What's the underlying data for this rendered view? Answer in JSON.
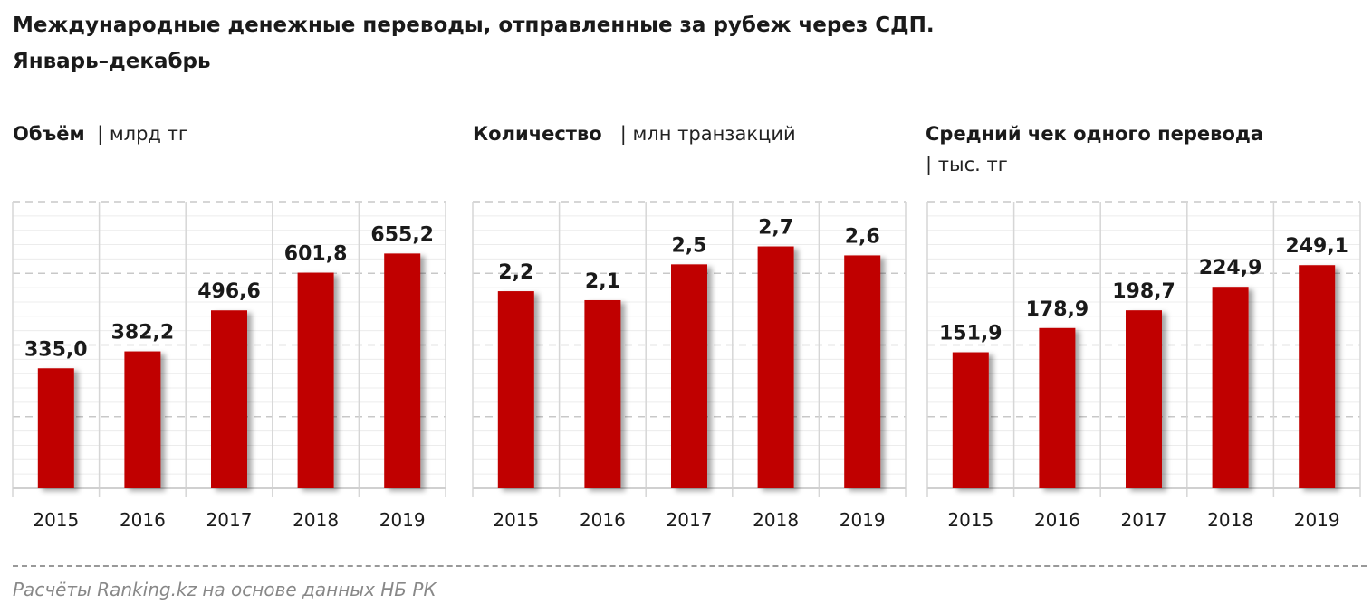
{
  "title_line1": "Международные денежные переводы, отправленные за рубеж через СДП.",
  "title_line2": "Январь–декабрь",
  "bar_color": "#c00000",
  "source": "Расчёты Ranking.kz на основе данных НБ РК",
  "chart_data": [
    {
      "type": "bar",
      "title": "Объём",
      "unit": "| млрд тг",
      "categories": [
        "2015",
        "2016",
        "2017",
        "2018",
        "2019"
      ],
      "values": [
        335.0,
        382.2,
        496.6,
        601.8,
        655.2
      ],
      "labels": [
        "335,0",
        "382,2",
        "496,6",
        "601,8",
        "655,2"
      ],
      "ylim": [
        0,
        800
      ],
      "grid": true
    },
    {
      "type": "bar",
      "title": "Количество",
      "unit": "| млн транзакций",
      "categories": [
        "2015",
        "2016",
        "2017",
        "2018",
        "2019"
      ],
      "values": [
        2.2,
        2.1,
        2.5,
        2.7,
        2.6
      ],
      "labels": [
        "2,2",
        "2,1",
        "2,5",
        "2,7",
        "2,6"
      ],
      "ylim": [
        0,
        3.2
      ],
      "grid": true
    },
    {
      "type": "bar",
      "title": "Средний чек одного перевода",
      "unit": "| тыс. тг",
      "categories": [
        "2015",
        "2016",
        "2017",
        "2018",
        "2019"
      ],
      "values": [
        151.9,
        178.9,
        198.7,
        224.9,
        249.1
      ],
      "labels": [
        "151,9",
        "178,9",
        "198,7",
        "224,9",
        "249,1"
      ],
      "ylim": [
        0,
        320
      ],
      "grid": true
    }
  ]
}
